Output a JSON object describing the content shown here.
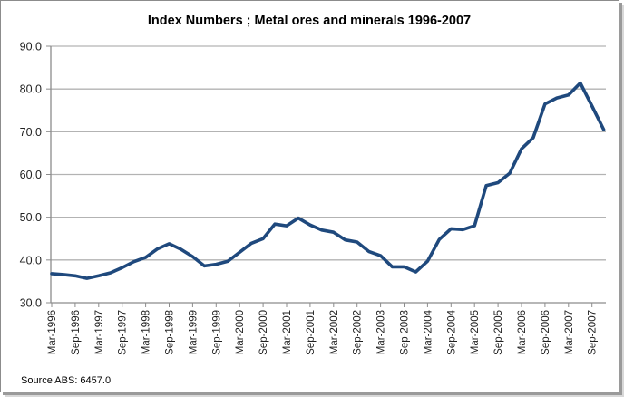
{
  "chart_data": {
    "type": "line",
    "title": "Index Numbers ;  Metal ores and minerals 1996-2007",
    "xlabel": "",
    "ylabel": "",
    "ylim": [
      30.0,
      90.0
    ],
    "yticks": [
      "30.0",
      "40.0",
      "50.0",
      "60.0",
      "70.0",
      "80.0",
      "90.0"
    ],
    "ytick_values": [
      30,
      40,
      50,
      60,
      70,
      80,
      90
    ],
    "grid": "horizontal",
    "legend": "none",
    "xtick_labels": [
      "Mar-1996",
      "Sep-1996",
      "Mar-1997",
      "Sep-1997",
      "Mar-1998",
      "Sep-1998",
      "Mar-1999",
      "Sep-1999",
      "Mar-2000",
      "Sep-2000",
      "Mar-2001",
      "Sep-2001",
      "Mar-2002",
      "Sep-2002",
      "Mar-2003",
      "Sep-2003",
      "Mar-2004",
      "Sep-2004",
      "Mar-2005",
      "Sep-2005",
      "Mar-2006",
      "Sep-2006",
      "Mar-2007",
      "Sep-2007"
    ],
    "x": [
      "Mar-1996",
      "Jun-1996",
      "Sep-1996",
      "Dec-1996",
      "Mar-1997",
      "Jun-1997",
      "Sep-1997",
      "Dec-1997",
      "Mar-1998",
      "Jun-1998",
      "Sep-1998",
      "Dec-1998",
      "Mar-1999",
      "Jun-1999",
      "Sep-1999",
      "Dec-1999",
      "Mar-2000",
      "Jun-2000",
      "Sep-2000",
      "Dec-2000",
      "Mar-2001",
      "Jun-2001",
      "Sep-2001",
      "Dec-2001",
      "Mar-2002",
      "Jun-2002",
      "Sep-2002",
      "Dec-2002",
      "Mar-2003",
      "Jun-2003",
      "Sep-2003",
      "Dec-2003",
      "Mar-2004",
      "Jun-2004",
      "Sep-2004",
      "Dec-2004",
      "Mar-2005",
      "Jun-2005",
      "Sep-2005",
      "Dec-2005",
      "Mar-2006",
      "Jun-2006",
      "Sep-2006",
      "Dec-2006",
      "Mar-2007",
      "Jun-2007",
      "Sep-2007",
      "Dec-2007"
    ],
    "series": [
      {
        "name": "Metal ores and minerals",
        "color": "#1F497D",
        "values": [
          36.8,
          36.6,
          36.3,
          35.7,
          36.3,
          37.0,
          38.2,
          39.6,
          40.6,
          42.6,
          43.8,
          42.5,
          40.8,
          38.6,
          39.0,
          39.7,
          41.8,
          43.9,
          45.0,
          48.4,
          48.0,
          49.8,
          48.2,
          47.0,
          46.5,
          44.7,
          44.2,
          42.0,
          41.0,
          38.4,
          38.4,
          37.2,
          39.7,
          44.8,
          47.3,
          47.1,
          48.0,
          57.4,
          58.1,
          60.3,
          66.0,
          68.6,
          76.5,
          77.9,
          78.6,
          81.4,
          76.0,
          70.5
        ]
      }
    ],
    "source_note": "Source ABS: 6457.0"
  },
  "colors": {
    "line": "#1F497D",
    "grid": "#b3b3b3",
    "axis": "#8c8c8c"
  }
}
